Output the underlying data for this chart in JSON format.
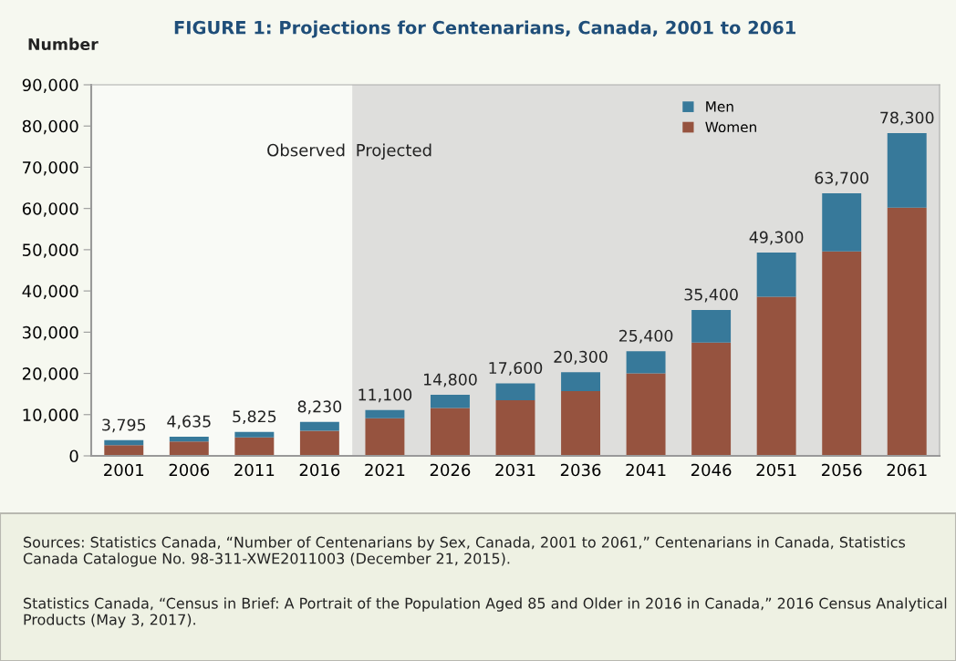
{
  "chart_data": {
    "type": "bar",
    "stacked": true,
    "title": "FIGURE 1: Projections for Centenarians, Canada, 2001 to 2061",
    "ylabel": "Number",
    "categories": [
      "2001",
      "2006",
      "2011",
      "2016",
      "2021",
      "2026",
      "2031",
      "2036",
      "2041",
      "2046",
      "2051",
      "2056",
      "2061"
    ],
    "series": [
      {
        "name": "Women",
        "color": "#96533f",
        "values": [
          2600,
          3500,
          4500,
          6100,
          9100,
          11600,
          13500,
          15700,
          20000,
          27500,
          38600,
          49600,
          60200
        ]
      },
      {
        "name": "Men",
        "color": "#37799a",
        "values": [
          1195,
          1135,
          1325,
          2130,
          2000,
          3200,
          4100,
          4600,
          5400,
          7900,
          10700,
          14100,
          18100
        ]
      }
    ],
    "totals": [
      "3,795",
      "4,635",
      "5,825",
      "8,230",
      "11,100",
      "14,800",
      "17,600",
      "20,300",
      "25,400",
      "35,400",
      "49,300",
      "63,700",
      "78,300"
    ],
    "ylim": [
      0,
      90000
    ],
    "yticks": [
      {
        "value": 0,
        "label": "0"
      },
      {
        "value": 10000,
        "label": "10,000"
      },
      {
        "value": 20000,
        "label": "20,000"
      },
      {
        "value": 30000,
        "label": "30,000"
      },
      {
        "value": 40000,
        "label": "40,000"
      },
      {
        "value": 50000,
        "label": "50,000"
      },
      {
        "value": 60000,
        "label": "60,000"
      },
      {
        "value": 70000,
        "label": "70,000"
      },
      {
        "value": 80000,
        "label": "80,000"
      },
      {
        "value": 90000,
        "label": "90,000"
      }
    ],
    "bands": [
      {
        "axis": "x",
        "from": "2021",
        "to": "2061",
        "label": "Projected",
        "color": "#dededc"
      }
    ],
    "grid": false,
    "legend": "top right",
    "annotations": [
      "Observed",
      "Sources: Statistics Canada, “Number of Centenarians by Sex, Canada, 2001 to 2061,” Centenarians in Canada, Statistics Canada Catalogue No. 98-311-XWE2011003 (December 21, 2015).",
      "Statistics Canada, “Census in Brief: A Portrait of the Population Aged 85 and Older in 2016 in Canada,” 2016 Census Analytical Products (May 3, 2017)."
    ]
  }
}
